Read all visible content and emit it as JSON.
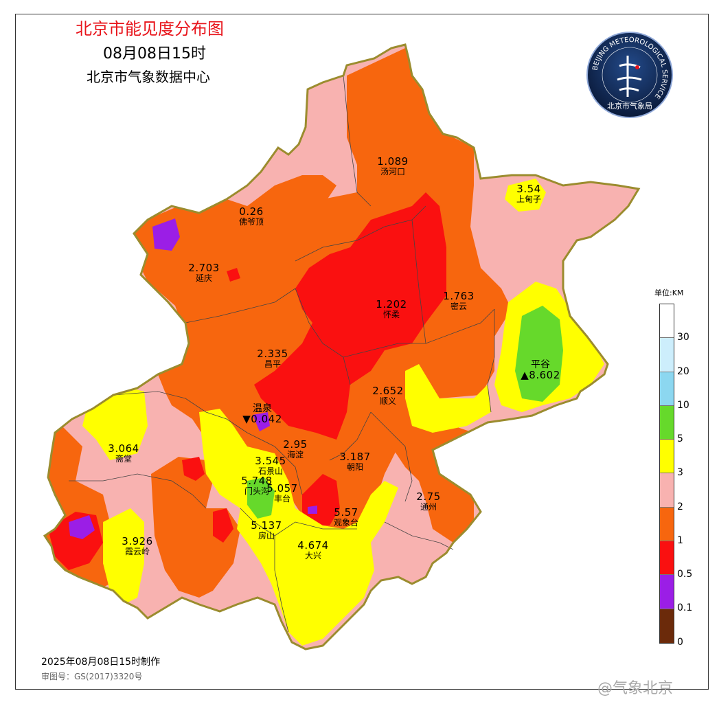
{
  "title": "北京市能见度分布图",
  "time": "08月08日15时",
  "organization": "北京市气象数据中心",
  "made_at": "2025年08月08日15时制作",
  "review_no": "审图号：GS(2017)3320号",
  "watermark": "@气象北京",
  "logo": {
    "ring_text": "BEIJING METEOROLOGICAL SERVICE",
    "name": "北京市气象局"
  },
  "legend": {
    "unit": "单位:KM",
    "ticks": [
      "30",
      "20",
      "10",
      "5",
      "3",
      "2",
      "1",
      "0.5",
      "0.1",
      "0"
    ],
    "colors": [
      "#ffffff",
      "#cdeefc",
      "#8cd7f0",
      "#66d92b",
      "#ffff00",
      "#f8b2b0",
      "#f7660e",
      "#fa1010",
      "#9b1ee6",
      "#6b2a0a"
    ]
  },
  "stations": [
    {
      "name": "汤河口",
      "value": "1.089"
    },
    {
      "name": "上甸子",
      "value": "3.54"
    },
    {
      "name": "佛爷顶",
      "value": "0.26"
    },
    {
      "name": "延庆",
      "value": "2.703"
    },
    {
      "name": "怀柔",
      "value": "1.202"
    },
    {
      "name": "密云",
      "value": "1.763"
    },
    {
      "name": "昌平",
      "value": "2.335"
    },
    {
      "name": "平谷",
      "value": "▲8.602"
    },
    {
      "name": "温泉",
      "value": "▼0.042"
    },
    {
      "name": "顺义",
      "value": "2.652"
    },
    {
      "name": "斋堂",
      "value": "3.064"
    },
    {
      "name": "海淀",
      "value": "2.95"
    },
    {
      "name": "石景山",
      "value": "3.545"
    },
    {
      "name": "朝阳",
      "value": "3.187"
    },
    {
      "name": "门头沟",
      "value": "5.748"
    },
    {
      "name": "丰台",
      "value": "5.057"
    },
    {
      "name": "通州",
      "value": "2.75"
    },
    {
      "name": "观象台",
      "value": "5.57"
    },
    {
      "name": "房山",
      "value": "5.137"
    },
    {
      "name": "霞云岭",
      "value": "3.926"
    },
    {
      "name": "大兴",
      "value": "4.674"
    }
  ]
}
